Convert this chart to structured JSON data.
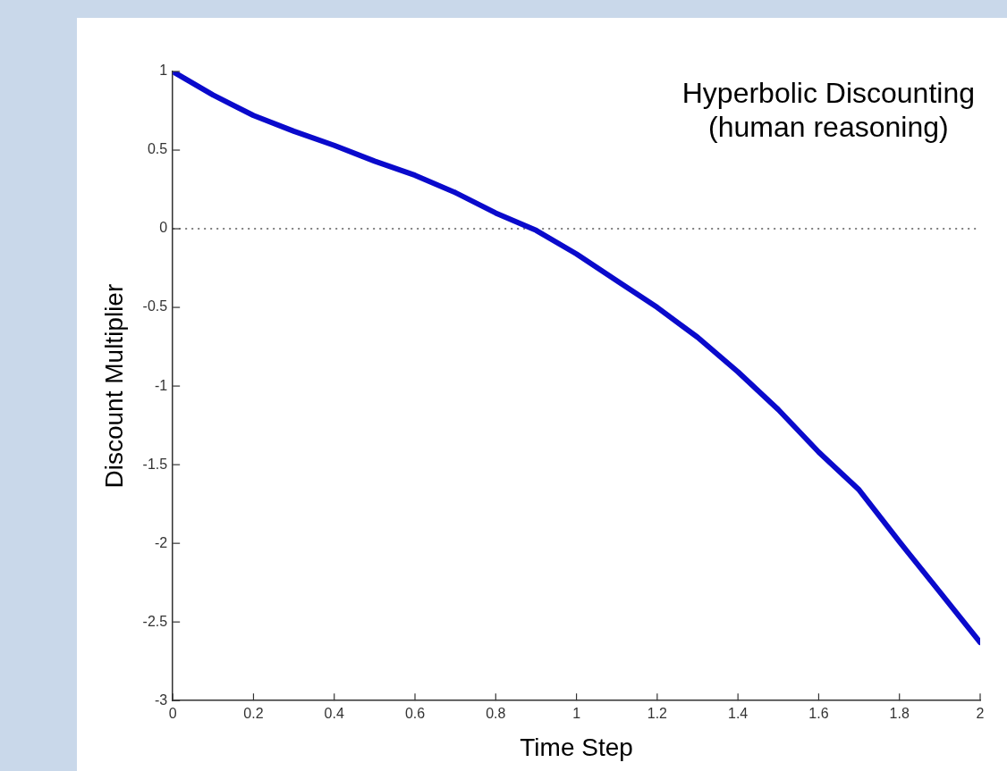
{
  "chart_data": {
    "type": "line",
    "xlabel": "Time Step",
    "ylabel": "Discount Multiplier",
    "annotations": [
      "Hyperbolic Discounting\n(human reasoning)"
    ],
    "x": [
      0,
      0.1,
      0.2,
      0.3,
      0.4,
      0.5,
      0.6,
      0.7,
      0.8,
      0.9,
      1.0,
      1.1,
      1.2,
      1.3,
      1.4,
      1.5,
      1.6,
      1.7,
      1.8,
      1.9,
      2.0
    ],
    "series": [
      {
        "color": "#0a0acc",
        "values": [
          1,
          0.85,
          0.72,
          0.62,
          0.53,
          0.43,
          0.34,
          0.23,
          0.1,
          -0.01,
          -0.16,
          -0.33,
          -0.5,
          -0.69,
          -0.91,
          -1.15,
          -1.42,
          -1.66,
          -1.99,
          -2.31,
          -2.63
        ]
      }
    ],
    "xlim": [
      0,
      2
    ],
    "xticks": [
      0,
      0.2,
      0.4,
      0.6,
      0.8,
      1,
      1.2,
      1.4,
      1.6,
      1.8,
      2
    ],
    "ylim": [
      -3,
      1
    ],
    "yticks": [
      -3,
      -2.5,
      -2,
      -1.5,
      -1,
      -0.5,
      0,
      0.5,
      1
    ],
    "ref_lines": [
      {
        "axis": "y",
        "value": 0,
        "color": "#555555",
        "line_style": "dotted"
      }
    ],
    "grid": false,
    "legend": false,
    "marker": "none",
    "line_style": "solid"
  }
}
